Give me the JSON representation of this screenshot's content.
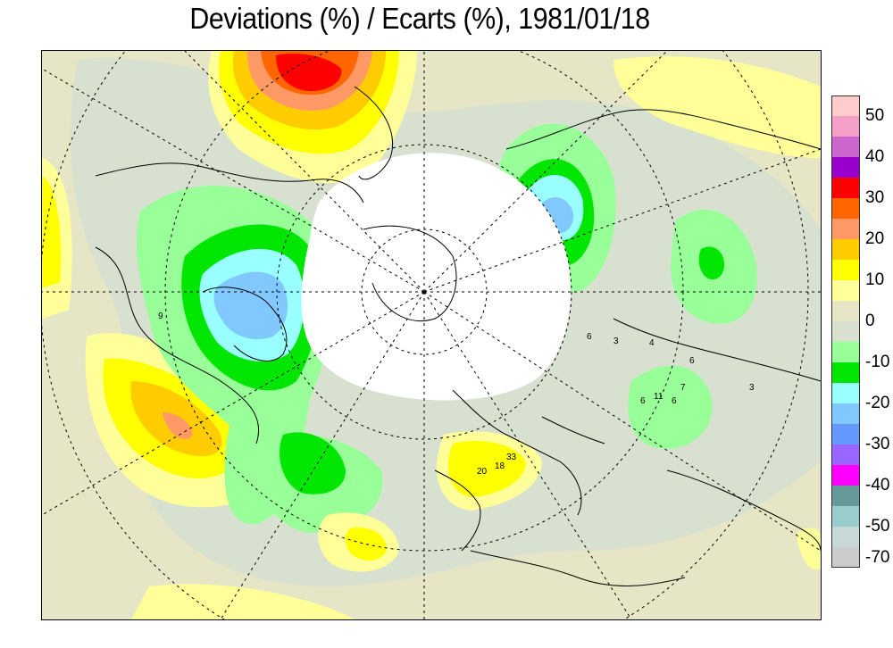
{
  "title": "Deviations (%) / Ecarts (%), 1981/01/18",
  "legend": {
    "colors": [
      "#ffcccc",
      "#f4a0c8",
      "#cc66cc",
      "#9900cc",
      "#ff0000",
      "#ff6600",
      "#ff9966",
      "#ffcc00",
      "#ffff00",
      "#ffff99",
      "#e6e6c6",
      "#d8e0d0",
      "#99ff99",
      "#00e600",
      "#99ffff",
      "#80c8ff",
      "#6699ff",
      "#9966ff",
      "#ff00ff",
      "#669999",
      "#99cccc",
      "#c8d8d8",
      "#cccccc"
    ],
    "labels": [
      "50",
      "40",
      "30",
      "20",
      "10",
      "0",
      "-10",
      "-20",
      "-30",
      "-40",
      "-50",
      "-70"
    ]
  },
  "map": {
    "coastline_labels": [
      "6",
      "3",
      "4",
      "20",
      "18",
      "33",
      "6",
      "11",
      "6",
      "7",
      "3",
      "9",
      "6"
    ]
  }
}
